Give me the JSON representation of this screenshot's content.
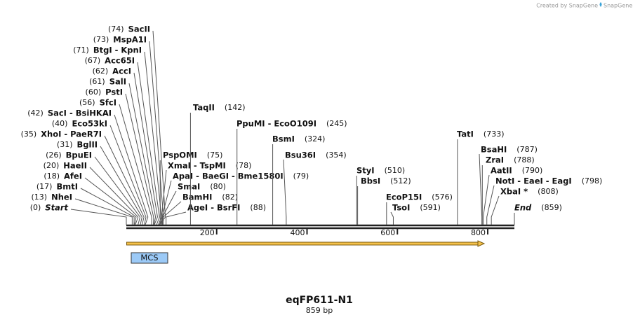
{
  "credit": "Created by SnapGene",
  "title": "eqFP611-N1",
  "subtitle": "859 bp",
  "feature_label": "MCS",
  "ruler_ticks": [
    200,
    400,
    600,
    800
  ],
  "sites": [
    {
      "label": "Start",
      "position": 0,
      "position_label": "(0)",
      "italic": true
    },
    {
      "label": "NheI",
      "position": 13,
      "position_label": "(13)"
    },
    {
      "label": "BmtI",
      "position": 17,
      "position_label": "(17)"
    },
    {
      "label": "AfeI",
      "position": 18,
      "position_label": "(18)"
    },
    {
      "label": "HaeII",
      "position": 20,
      "position_label": "(20)"
    },
    {
      "label": "BpuEI",
      "position": 26,
      "position_label": "(26)"
    },
    {
      "label": "BglII",
      "position": 31,
      "position_label": "(31)"
    },
    {
      "label": "XhoI  -  PaeR7I",
      "position": 35,
      "position_label": "(35)"
    },
    {
      "label": "Eco53kI",
      "position": 40,
      "position_label": "(40)"
    },
    {
      "label": "SacI  -  BsiHKAI",
      "position": 42,
      "position_label": "(42)"
    },
    {
      "label": "SfcI",
      "position": 56,
      "position_label": "(56)"
    },
    {
      "label": "PstI",
      "position": 60,
      "position_label": "(60)"
    },
    {
      "label": "SalI",
      "position": 61,
      "position_label": "(61)"
    },
    {
      "label": "AccI",
      "position": 62,
      "position_label": "(62)"
    },
    {
      "label": "Acc65I",
      "position": 67,
      "position_label": "(67)"
    },
    {
      "label": "BtgI  -  KpnI",
      "position": 71,
      "position_label": "(71)"
    },
    {
      "label": "MspA1I",
      "position": 73,
      "position_label": "(73)"
    },
    {
      "label": "SacII",
      "position": 74,
      "position_label": "(74)"
    },
    {
      "label": "PspOMI",
      "position": 75,
      "position_label": "(75)"
    },
    {
      "label": "XmaI  -  TspMI",
      "position": 78,
      "position_label": "(78)"
    },
    {
      "label": "ApaI  -  BaeGI  -  Bme1580I",
      "position": 79,
      "position_label": "(79)"
    },
    {
      "label": "SmaI",
      "position": 80,
      "position_label": "(80)"
    },
    {
      "label": "BamHI",
      "position": 82,
      "position_label": "(82)"
    },
    {
      "label": "AgeI  -  BsrFI",
      "position": 88,
      "position_label": "(88)"
    },
    {
      "label": "TaqII",
      "position": 142,
      "position_label": "(142)"
    },
    {
      "label": "PpuMI  -  EcoO109I",
      "position": 245,
      "position_label": "(245)"
    },
    {
      "label": "BsmI",
      "position": 324,
      "position_label": "(324)"
    },
    {
      "label": "Bsu36I",
      "position": 354,
      "position_label": "(354)"
    },
    {
      "label": "StyI",
      "position": 510,
      "position_label": "(510)"
    },
    {
      "label": "BbsI",
      "position": 512,
      "position_label": "(512)"
    },
    {
      "label": "EcoP15I",
      "position": 576,
      "position_label": "(576)"
    },
    {
      "label": "TsoI",
      "position": 591,
      "position_label": "(591)"
    },
    {
      "label": "TatI",
      "position": 733,
      "position_label": "(733)"
    },
    {
      "label": "BsaHI",
      "position": 787,
      "position_label": "(787)"
    },
    {
      "label": "ZraI",
      "position": 788,
      "position_label": "(788)"
    },
    {
      "label": "AatII",
      "position": 790,
      "position_label": "(790)"
    },
    {
      "label": "NotI  -  EaeI  -  EagI",
      "position": 798,
      "position_label": "(798)"
    },
    {
      "label": "XbaI *",
      "position": 808,
      "position_label": "(808)"
    },
    {
      "label": "End",
      "position": 859,
      "position_label": "(859)",
      "italic": true
    }
  ]
}
